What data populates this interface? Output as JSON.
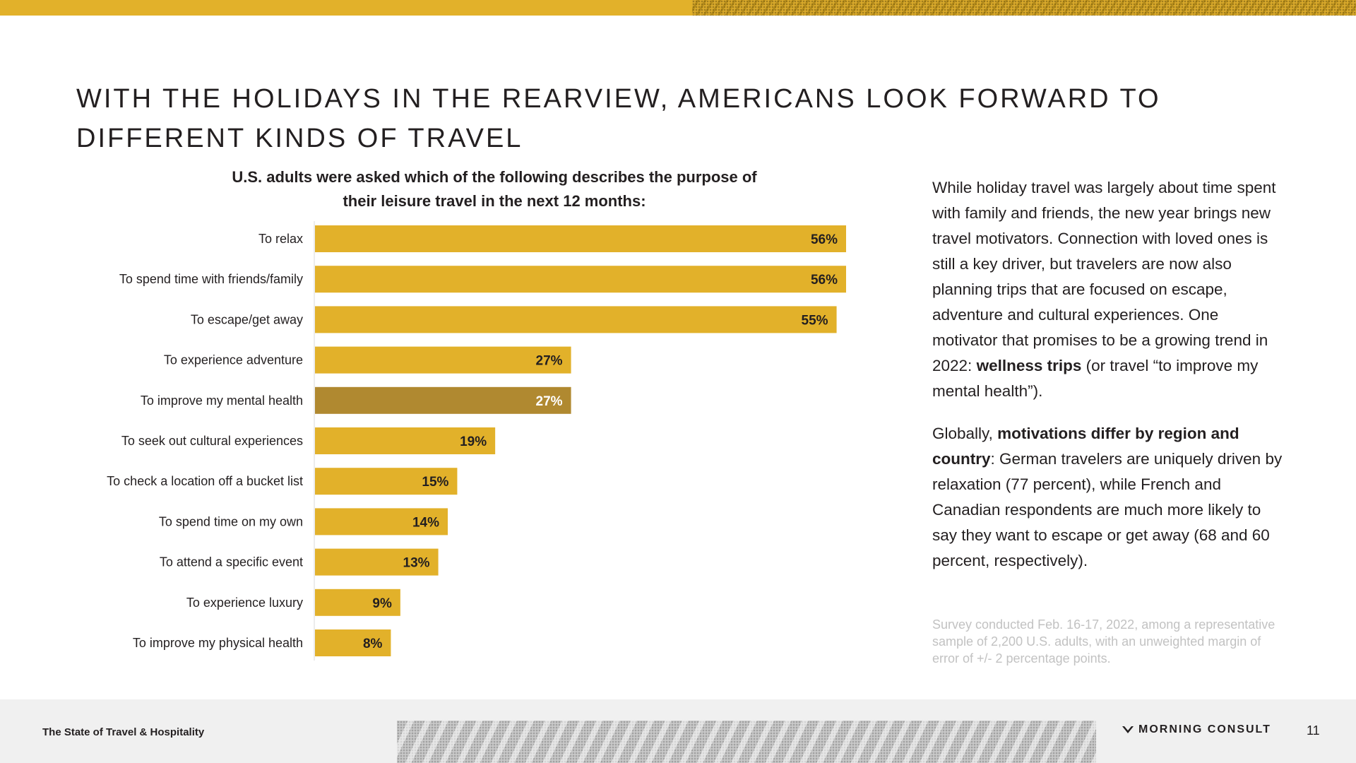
{
  "headline": {
    "line1": "WITH THE HOLIDAYS IN THE REARVIEW, AMERICANS LOOK FORWARD TO",
    "line2": "DIFFERENT KINDS OF TRAVEL"
  },
  "chart_title": {
    "line1": "U.S. adults were asked which of the following describes the purpose of",
    "line2": "their leisure travel in the next 12 months:"
  },
  "chart_data": {
    "type": "bar",
    "orientation": "horizontal",
    "title": "U.S. adults were asked which of the following describes the purpose of their leisure travel in the next 12 months:",
    "categories": [
      "To relax",
      "To spend time with friends/family",
      "To escape/get away",
      "To experience adventure",
      "To improve my mental health",
      "To seek out cultural experiences",
      "To check a location off a bucket list",
      "To spend time on my own",
      "To attend a specific event",
      "To experience luxury",
      "To improve my physical health"
    ],
    "values": [
      56,
      56,
      55,
      27,
      27,
      19,
      15,
      14,
      13,
      9,
      8
    ],
    "labels": [
      "56%",
      "56%",
      "55%",
      "27%",
      "27%",
      "19%",
      "15%",
      "14%",
      "13%",
      "9%",
      "8%"
    ],
    "highlight_index": 4,
    "xlim": [
      0,
      56
    ],
    "bar_color": "#e2b12a",
    "highlight_color": "#b08930",
    "xlabel": "",
    "ylabel": "",
    "grid": false
  },
  "body": {
    "p1_text": "While holiday travel was largely about time spent with family and friends, the new year brings new travel motivators. Connection with loved ones is still a key driver, but travelers are now also planning trips that are focused on escape, adventure and cultural experiences. One motivator that promises to be a growing trend in 2022: ",
    "p1_bold": "wellness trips",
    "p1_end": " (or travel “to improve my mental health”).",
    "p2_start": "Globally, ",
    "p2_bold": "motivations differ by region and country",
    "p2_end": ": German travelers are uniquely driven by relaxation (77 percent), while French and Canadian respondents are much more likely to say they want to escape or get away (68 and 60 percent, respectively)."
  },
  "footnote": "Survey conducted Feb. 16-17, 2022, among a representative sample of 2,200 U.S. adults, with an unweighted margin of error of +/- 2 percentage points.",
  "footer": {
    "report_title": "The State of Travel & Hospitality",
    "brand": "MORNING CONSULT",
    "page_number": "11"
  },
  "colors": {
    "accent": "#e2b12a",
    "highlight": "#b08930",
    "text": "#231f20",
    "muted": "#c2c2c2"
  }
}
